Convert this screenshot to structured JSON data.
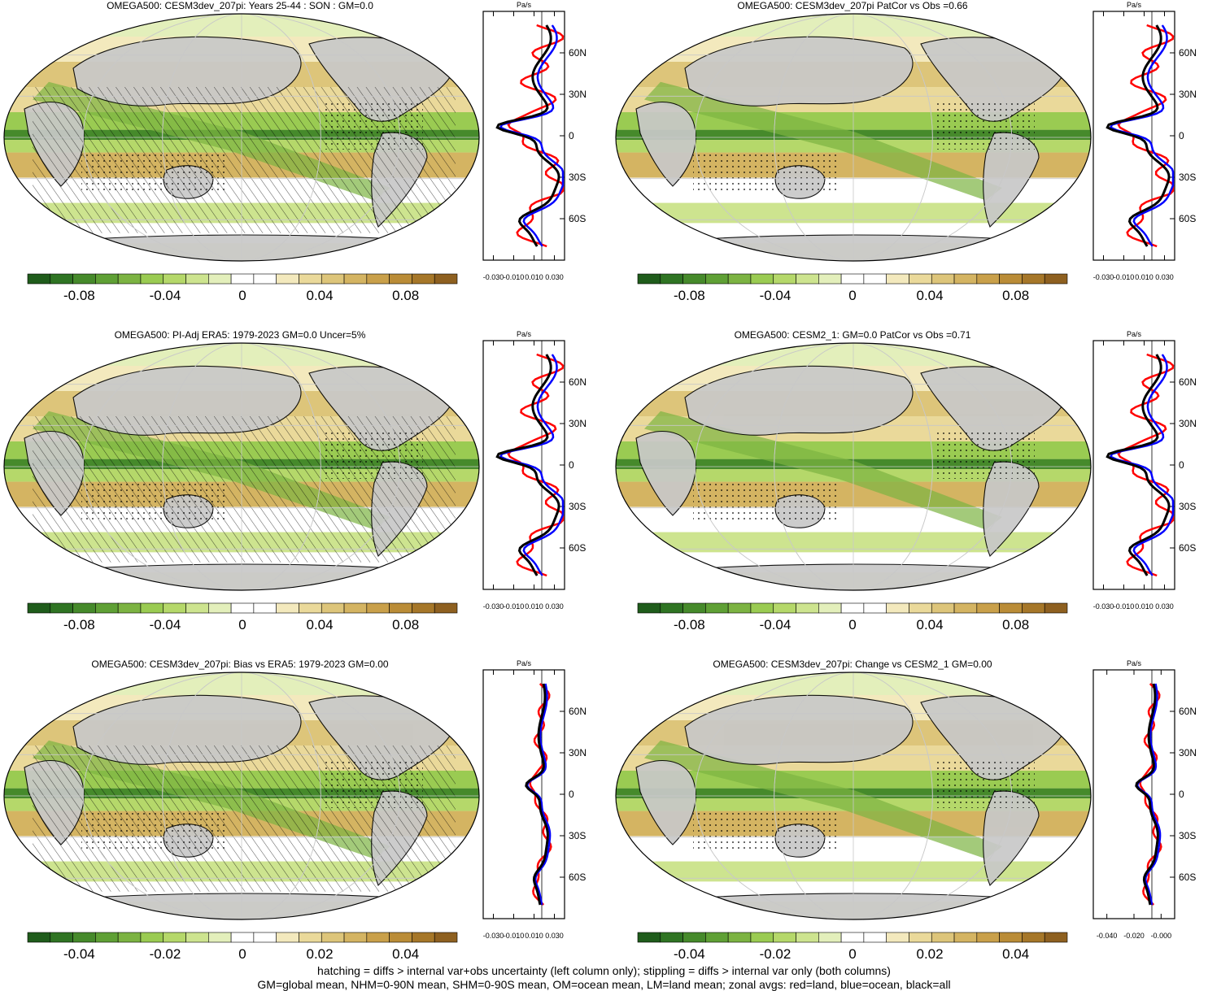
{
  "panels": [
    {
      "title": "OMEGA500: CESM3dev_207pi: Years 25-44 : SON : GM=0.0",
      "hatched": true,
      "cbar_labels": [
        "-0.08",
        "-0.04",
        "0",
        "0.04",
        "0.08"
      ],
      "profile_ticks": [
        "-0.030",
        "-0.010",
        "0.010",
        "0.030"
      ]
    },
    {
      "title": "OMEGA500: CESM3dev_207pi PatCor vs Obs =0.66",
      "hatched": false,
      "cbar_labels": [
        "-0.08",
        "-0.04",
        "0",
        "0.04",
        "0.08"
      ],
      "profile_ticks": [
        "-0.030",
        "-0.010",
        "0.010",
        "0.030"
      ]
    },
    {
      "title": "OMEGA500: PI-Adj ERA5: 1979-2023 GM=0.0 Uncer=5%",
      "hatched": true,
      "cbar_labels": [
        "-0.08",
        "-0.04",
        "0",
        "0.04",
        "0.08"
      ],
      "profile_ticks": [
        "-0.030",
        "-0.010",
        "0.010",
        "0.030"
      ]
    },
    {
      "title": "OMEGA500: CESM2_1: GM=0.0 PatCor vs Obs =0.71",
      "hatched": false,
      "cbar_labels": [
        "-0.08",
        "-0.04",
        "0",
        "0.04",
        "0.08"
      ],
      "profile_ticks": [
        "-0.030",
        "-0.010",
        "0.010",
        "0.030"
      ]
    },
    {
      "title": "OMEGA500: CESM3dev_207pi: Bias vs ERA5: 1979-2023  GM=0.00",
      "hatched": true,
      "cbar_labels": [
        "-0.04",
        "-0.02",
        "0",
        "0.02",
        "0.04"
      ],
      "profile_ticks": [
        "-0.030",
        "-0.010",
        "0.010",
        "0.030"
      ]
    },
    {
      "title": "OMEGA500: CESM3dev_207pi: Change vs CESM2_1 GM=0.00",
      "hatched": false,
      "cbar_labels": [
        "-0.04",
        "-0.02",
        "0",
        "0.02",
        "0.04"
      ],
      "profile_ticks": [
        "-0.040",
        "-0.020",
        "-0.000"
      ]
    }
  ],
  "profile_unit": "Pa/s",
  "lat_labels": [
    "60N",
    "30N",
    "0",
    "30S",
    "60S"
  ],
  "colors": {
    "land": "#ff0000",
    "ocean": "#0000ff",
    "all": "#000000",
    "missing": "#c8c8c8",
    "scale": [
      "#1f5c1b",
      "#2f7423",
      "#468a2b",
      "#5fa035",
      "#7cb342",
      "#9acb52",
      "#b5d86a",
      "#cde48f",
      "#e3efbb",
      "#ffffff",
      "#ffffff",
      "#f3e9bd",
      "#ead99a",
      "#ddc57a",
      "#d4b462",
      "#c9a04a",
      "#ba8c37",
      "#a67729",
      "#8e6020"
    ]
  },
  "footer": {
    "line1": "hatching = diffs > internal var+obs uncertainty (left column only); stippling = diffs > internal var only (both columns)",
    "line2": "GM=global mean, NHM=0-90N mean, SHM=0-90S mean, OM=ocean mean, LM=land mean; zonal avgs: red=land, blue=ocean, black=all"
  }
}
